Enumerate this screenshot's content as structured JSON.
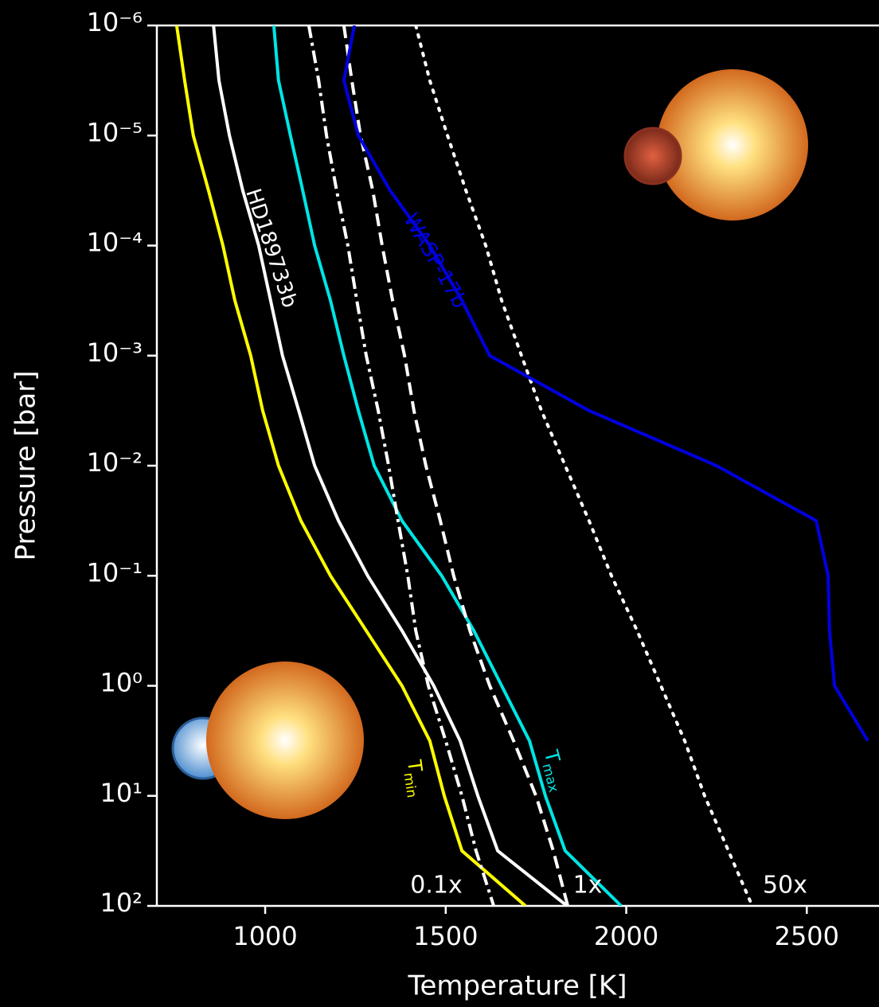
{
  "chart_data": {
    "type": "line",
    "xlabel": "Temperature [K]",
    "ylabel": "Pressure [bar]",
    "xlim": [
      700,
      2700
    ],
    "xticks": [
      1000,
      1500,
      2000,
      2500
    ],
    "ylim": [
      1e-06,
      100
    ],
    "log_y": true,
    "y_inverted": true,
    "yticks": [
      {
        "value": 1e-06,
        "label": "10⁻⁶"
      },
      {
        "value": 1e-05,
        "label": "10⁻⁵"
      },
      {
        "value": 0.0001,
        "label": "10⁻⁴"
      },
      {
        "value": 0.001,
        "label": "10⁻³"
      },
      {
        "value": 0.01,
        "label": "10⁻²"
      },
      {
        "value": 0.1,
        "label": "10⁻¹"
      },
      {
        "value": 1,
        "label": "10⁰"
      },
      {
        "value": 10,
        "label": "10¹"
      },
      {
        "value": 100,
        "label": "10²"
      }
    ],
    "y": [
      1e-06,
      3.16e-06,
      1e-05,
      3.16e-05,
      0.0001,
      0.000316,
      0.001,
      0.00316,
      0.01,
      0.0316,
      0.1,
      0.316,
      1,
      3.16,
      10,
      31.6,
      100
    ],
    "series": [
      {
        "name": "Tmin",
        "color": "#ffff00",
        "dash": "solid",
        "values": [
          755,
          777,
          801,
          843,
          883,
          916,
          960,
          993,
          1037,
          1099,
          1181,
          1280,
          1379,
          1456,
          1496,
          1545,
          1721
        ]
      },
      {
        "name": "HD189733b",
        "color": "#ffffff",
        "dash": "solid",
        "values": [
          857,
          872,
          901,
          938,
          982,
          1015,
          1048,
          1093,
          1137,
          1203,
          1284,
          1379,
          1467,
          1540,
          1589,
          1644,
          1836
        ]
      },
      {
        "name": "Tmax",
        "color": "#00e5e5",
        "dash": "solid",
        "values": [
          1024,
          1037,
          1070,
          1104,
          1137,
          1181,
          1218,
          1258,
          1302,
          1379,
          1489,
          1578,
          1655,
          1732,
          1776,
          1831,
          1986
        ]
      },
      {
        "name": "0.1x",
        "color": "#ffffff",
        "dash": "dashdot",
        "values": [
          1121,
          1148,
          1170,
          1198,
          1229,
          1254,
          1280,
          1313,
          1342,
          1368,
          1395,
          1417,
          1452,
          1500,
          1545,
          1584,
          1633
        ]
      },
      {
        "name": "1x",
        "color": "#ffffff",
        "dash": "dashed",
        "values": [
          1218,
          1240,
          1264,
          1298,
          1324,
          1353,
          1386,
          1412,
          1445,
          1485,
          1522,
          1567,
          1622,
          1688,
          1750,
          1798,
          1838
        ]
      },
      {
        "name": "50x",
        "color": "#ffffff",
        "dash": "dotted",
        "values": [
          1417,
          1456,
          1505,
          1556,
          1611,
          1655,
          1710,
          1765,
          1831,
          1897,
          1959,
          2030,
          2096,
          2162,
          2217,
          2283,
          2349
        ]
      },
      {
        "name": "WASP-17b",
        "color": "#0000e0",
        "dash": "solid",
        "values": [
          1247,
          1218,
          1258,
          1346,
          1456,
          1545,
          1622,
          1897,
          2250,
          2526,
          2559,
          2563,
          2577,
          2669,
          null,
          null,
          null
        ]
      }
    ]
  }
}
